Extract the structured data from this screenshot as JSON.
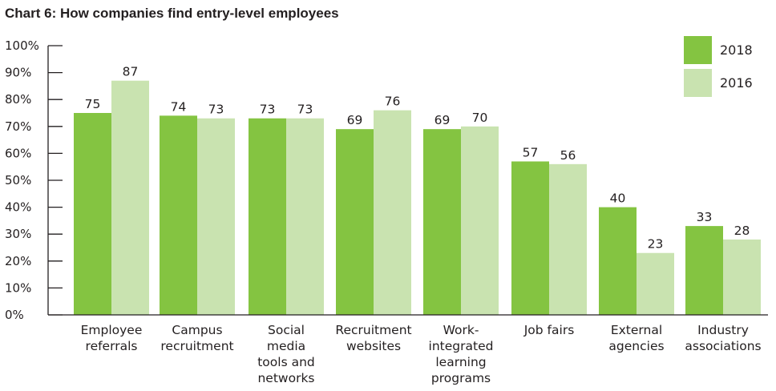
{
  "chart_data": {
    "type": "bar",
    "title": "Chart 6: How companies find entry-level employees",
    "categories": [
      [
        "Employee",
        "referrals"
      ],
      [
        "Campus",
        "recruitment"
      ],
      [
        "Social",
        "media",
        "tools and",
        "networks"
      ],
      [
        "Recruitment",
        "websites"
      ],
      [
        "Work-",
        "integrated",
        "learning",
        "programs"
      ],
      [
        "Job fairs"
      ],
      [
        "External",
        "agencies"
      ],
      [
        "Industry",
        "associations"
      ]
    ],
    "series": [
      {
        "name": "2018",
        "color": "#84c441",
        "values": [
          75,
          74,
          73,
          69,
          69,
          57,
          40,
          33
        ]
      },
      {
        "name": "2016",
        "color": "#c9e3b0",
        "values": [
          87,
          73,
          73,
          76,
          70,
          56,
          23,
          28
        ]
      }
    ],
    "ylim": [
      0,
      100
    ],
    "yticks": [
      "0%",
      "10%",
      "20%",
      "30%",
      "40%",
      "50%",
      "60%",
      "70%",
      "80%",
      "90%",
      "100%"
    ],
    "ytick_values": [
      0,
      10,
      20,
      30,
      40,
      50,
      60,
      70,
      80,
      90,
      100
    ],
    "grid": false,
    "legend_position": "top-right"
  }
}
